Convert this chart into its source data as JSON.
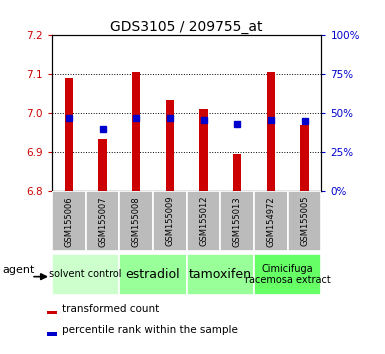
{
  "title": "GDS3105 / 209755_at",
  "samples": [
    "GSM155006",
    "GSM155007",
    "GSM155008",
    "GSM155009",
    "GSM155012",
    "GSM155013",
    "GSM154972",
    "GSM155005"
  ],
  "red_values": [
    7.09,
    6.935,
    7.105,
    7.035,
    7.01,
    6.895,
    7.105,
    6.97
  ],
  "blue_percentiles": [
    47,
    40,
    47,
    47,
    46,
    43,
    46,
    45
  ],
  "ylim_left": [
    6.8,
    7.2
  ],
  "ylim_right": [
    0,
    100
  ],
  "yticks_left": [
    6.8,
    6.9,
    7.0,
    7.1,
    7.2
  ],
  "yticks_right": [
    0,
    25,
    50,
    75,
    100
  ],
  "bar_bottom": 6.8,
  "red_color": "#cc0000",
  "blue_color": "#0000cc",
  "bar_width": 0.25,
  "group_colors": [
    "#ccffcc",
    "#99ff99",
    "#99ff99",
    "#66ff66"
  ],
  "group_labels": [
    "solvent control",
    "estradiol",
    "tamoxifen",
    "Cimicifuga\nracemosa extract"
  ],
  "group_ranges": [
    [
      0,
      1
    ],
    [
      2,
      3
    ],
    [
      4,
      5
    ],
    [
      6,
      7
    ]
  ],
  "group_fontsizes": [
    7,
    9,
    9,
    7
  ]
}
